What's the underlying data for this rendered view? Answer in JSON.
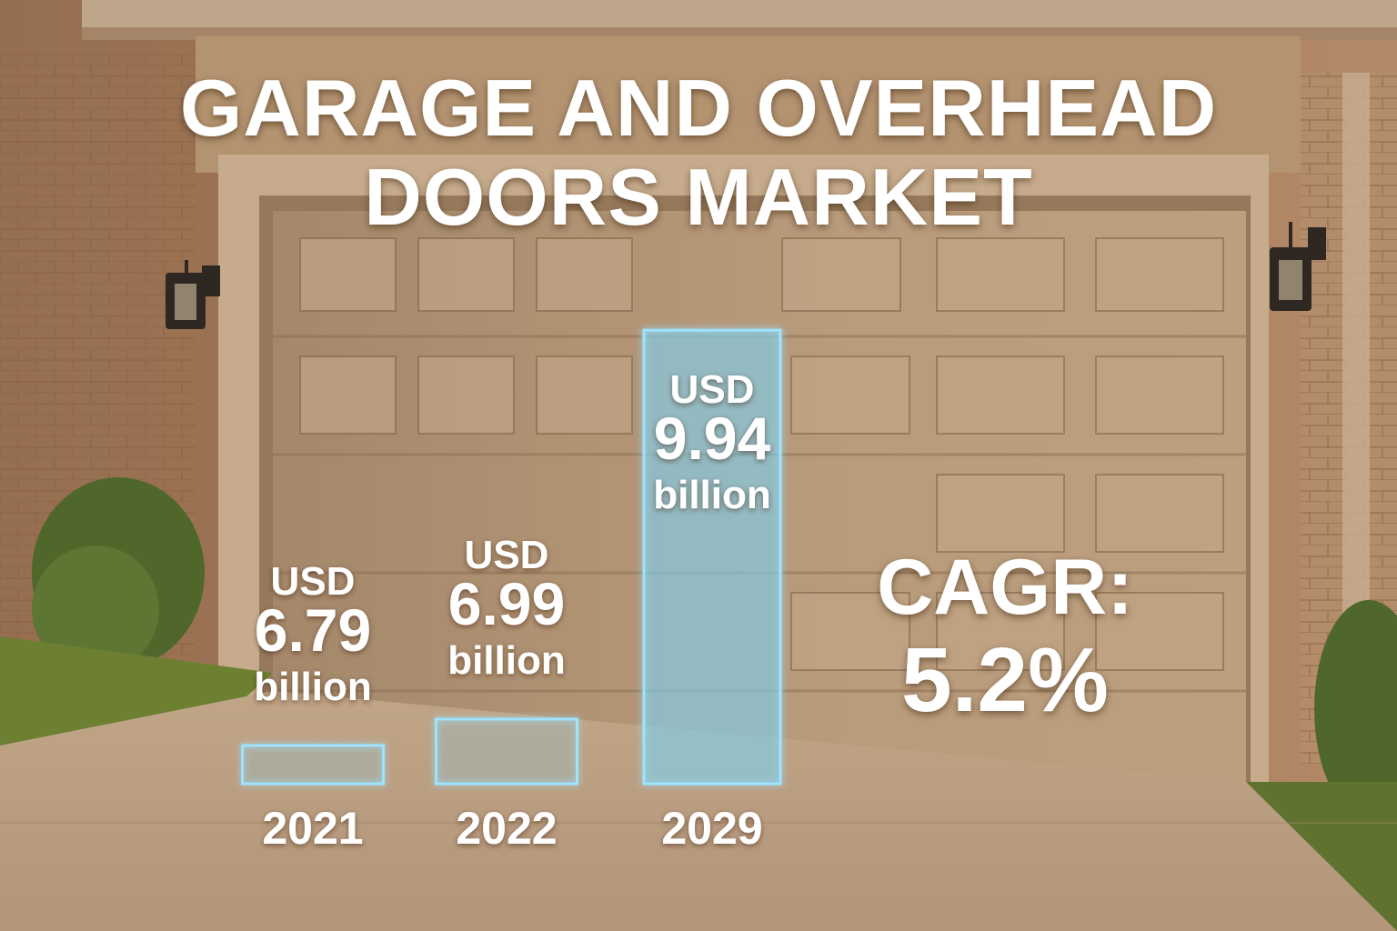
{
  "title_line1": "GARAGE AND OVERHEAD",
  "title_line2": "DOORS MARKET",
  "cagr": {
    "label": "CAGR:",
    "value": "5.2%"
  },
  "colors": {
    "bar_stroke": "#9fe3ff",
    "bar_fill": "#7fd0f0",
    "text": "#ffffff",
    "door": "#b79b7b",
    "wall": "#a57c5b"
  },
  "chart_data": {
    "type": "bar",
    "title": "GARAGE AND OVERHEAD DOORS MARKET",
    "xlabel": "",
    "ylabel": "",
    "categories": [
      "2021",
      "2022",
      "2029"
    ],
    "values": [
      6.79,
      6.99,
      9.94
    ],
    "value_labels": [
      {
        "currency": "USD",
        "amount": "6.79",
        "unit": "billion"
      },
      {
        "currency": "USD",
        "amount": "6.99",
        "unit": "billion"
      },
      {
        "currency": "USD",
        "amount": "9.94",
        "unit": "billion"
      }
    ],
    "highlight_index": 2,
    "grid": false,
    "legend": "none"
  }
}
